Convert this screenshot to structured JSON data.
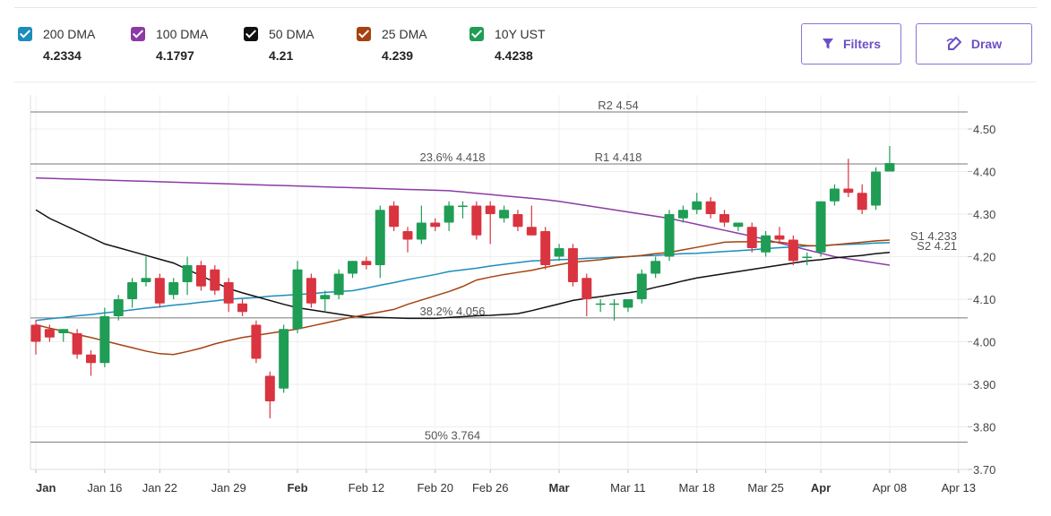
{
  "chart_data": {
    "type": "candlestick",
    "categories": [
      "Jan",
      null,
      null,
      null,
      null,
      "Jan 16",
      null,
      null,
      null,
      "Jan 22",
      null,
      null,
      null,
      null,
      "Jan 29",
      null,
      null,
      null,
      null,
      "Feb",
      null,
      null,
      null,
      null,
      "Feb 12",
      null,
      null,
      null,
      null,
      "Feb 20",
      null,
      null,
      null,
      "Feb 26",
      null,
      null,
      null,
      null,
      "Mar",
      null,
      null,
      null,
      null,
      "Mar 11",
      null,
      null,
      null,
      null,
      "Mar 18",
      null,
      null,
      null,
      null,
      "Mar 25",
      null,
      null,
      null,
      "Apr",
      null,
      null,
      null,
      null,
      "Apr 08",
      null,
      null,
      null,
      null,
      "Apr 13"
    ],
    "series": [
      {
        "name": "200 DMA",
        "color": "#1b8dbd",
        "legend_value": 4.2334,
        "values": [
          4.05,
          4.054,
          4.057,
          4.061,
          4.064,
          4.068,
          4.071,
          4.075,
          4.079,
          4.082,
          4.086,
          4.089,
          4.093,
          4.096,
          4.1,
          4.102,
          4.104,
          4.107,
          4.109,
          4.111,
          4.113,
          4.116,
          4.118,
          4.12,
          4.126,
          4.133,
          4.139,
          4.146,
          4.152,
          4.158,
          4.165,
          4.169,
          4.173,
          4.178,
          4.182,
          4.186,
          4.19,
          4.191,
          4.193,
          4.194,
          4.196,
          4.197,
          4.199,
          4.2,
          4.202,
          4.203,
          4.205,
          4.207,
          4.208,
          4.21,
          4.212,
          4.214,
          4.216,
          4.219,
          4.221,
          4.223,
          4.225,
          4.226,
          4.228,
          4.229,
          4.23,
          4.232,
          4.233,
          null,
          null,
          null,
          null,
          null
        ]
      },
      {
        "name": "100 DMA",
        "color": "#8c3ba5",
        "legend_value": 4.1797,
        "values": [
          4.385,
          4.384,
          4.383,
          4.382,
          4.381,
          4.38,
          4.379,
          4.378,
          4.377,
          4.376,
          4.375,
          4.374,
          4.373,
          4.372,
          4.371,
          4.37,
          4.369,
          4.368,
          4.367,
          4.366,
          4.365,
          4.364,
          4.363,
          4.362,
          4.361,
          4.36,
          4.359,
          4.358,
          4.357,
          4.356,
          4.355,
          4.352,
          4.349,
          4.346,
          4.343,
          4.34,
          4.337,
          4.334,
          4.33,
          4.325,
          4.32,
          4.315,
          4.31,
          4.305,
          4.3,
          4.295,
          4.29,
          4.283,
          4.276,
          4.269,
          4.262,
          4.255,
          4.248,
          4.24,
          4.232,
          4.224,
          4.216,
          4.208,
          4.2,
          4.195,
          4.19,
          4.185,
          4.18,
          null,
          null,
          null,
          null,
          null
        ]
      },
      {
        "name": "50 DMA",
        "color": "#111111",
        "legend_value": 4.21,
        "values": [
          4.31,
          4.29,
          4.275,
          4.26,
          4.245,
          4.23,
          4.221,
          4.212,
          4.203,
          4.194,
          4.185,
          4.17,
          4.155,
          4.14,
          4.125,
          4.115,
          4.106,
          4.097,
          4.088,
          4.08,
          4.075,
          4.07,
          4.065,
          4.06,
          4.058,
          4.057,
          4.056,
          4.055,
          4.055,
          4.055,
          4.057,
          4.059,
          4.061,
          4.062,
          4.064,
          4.066,
          4.073,
          4.081,
          4.089,
          4.097,
          4.102,
          4.106,
          4.111,
          4.115,
          4.12,
          4.128,
          4.135,
          4.143,
          4.15,
          4.155,
          4.16,
          4.165,
          4.17,
          4.175,
          4.18,
          4.185,
          4.19,
          4.193,
          4.197,
          4.2,
          4.203,
          4.207,
          4.21,
          null,
          null,
          null,
          null,
          null
        ]
      },
      {
        "name": "25 DMA",
        "color": "#a6420f",
        "legend_value": 4.239,
        "values": [
          4.04,
          4.032,
          4.025,
          4.017,
          4.01,
          4.002,
          3.994,
          3.986,
          3.978,
          3.972,
          3.97,
          3.977,
          3.985,
          3.995,
          4.003,
          4.01,
          4.015,
          4.02,
          4.025,
          4.03,
          4.037,
          4.044,
          4.051,
          4.058,
          4.064,
          4.07,
          4.076,
          4.088,
          4.098,
          4.108,
          4.118,
          4.13,
          4.145,
          4.152,
          4.158,
          4.163,
          4.168,
          4.175,
          4.181,
          4.187,
          4.19,
          4.193,
          4.197,
          4.2,
          4.203,
          4.207,
          4.21,
          4.216,
          4.222,
          4.228,
          4.234,
          4.235,
          4.235,
          4.235,
          4.234,
          4.23,
          4.226,
          4.225,
          4.228,
          4.231,
          4.234,
          4.237,
          4.239,
          null,
          null,
          null,
          null,
          null
        ]
      },
      {
        "name": "10Y UST",
        "color": "#1f9d55",
        "down_color": "#d9343f",
        "legend_value": 4.4238,
        "open": [
          4.04,
          4.03,
          4.02,
          4.02,
          3.97,
          3.95,
          4.06,
          4.1,
          4.14,
          4.15,
          4.11,
          4.14,
          4.18,
          4.17,
          4.14,
          4.09,
          4.04,
          3.92,
          3.89,
          4.03,
          4.15,
          4.1,
          4.11,
          4.16,
          4.19,
          4.18,
          4.32,
          4.26,
          4.24,
          4.28,
          4.28,
          4.32,
          4.32,
          4.32,
          4.29,
          4.3,
          4.27,
          4.26,
          4.2,
          4.22,
          4.15,
          4.09,
          4.09,
          4.08,
          4.1,
          4.16,
          4.2,
          4.29,
          4.31,
          4.33,
          4.3,
          4.27,
          4.27,
          4.21,
          4.25,
          4.24,
          4.2,
          4.21,
          4.33,
          4.36,
          4.35,
          4.32,
          4.4,
          null,
          null,
          null,
          null,
          null
        ],
        "high": [
          4.05,
          4.04,
          4.03,
          4.03,
          3.98,
          4.08,
          4.11,
          4.15,
          4.2,
          4.16,
          4.15,
          4.2,
          4.19,
          4.18,
          4.15,
          4.1,
          4.05,
          3.93,
          4.04,
          4.19,
          4.16,
          4.12,
          4.17,
          4.19,
          4.2,
          4.32,
          4.33,
          4.27,
          4.32,
          4.29,
          4.33,
          4.33,
          4.33,
          4.33,
          4.32,
          4.31,
          4.32,
          4.27,
          4.23,
          4.23,
          4.16,
          4.1,
          4.1,
          4.1,
          4.17,
          4.2,
          4.31,
          4.32,
          4.35,
          4.34,
          4.31,
          4.28,
          4.28,
          4.26,
          4.27,
          4.25,
          4.21,
          4.33,
          4.37,
          4.43,
          4.37,
          4.41,
          4.46,
          null,
          null,
          null,
          null,
          null
        ],
        "low": [
          3.97,
          4.0,
          4.0,
          3.96,
          3.92,
          3.94,
          4.05,
          4.08,
          4.13,
          4.08,
          4.1,
          4.11,
          4.12,
          4.11,
          4.07,
          4.06,
          3.95,
          3.82,
          3.88,
          4.02,
          4.08,
          4.07,
          4.1,
          4.15,
          4.17,
          4.15,
          4.26,
          4.21,
          4.23,
          4.26,
          4.26,
          4.29,
          4.24,
          4.23,
          4.28,
          4.26,
          4.25,
          4.17,
          4.19,
          4.13,
          4.06,
          4.07,
          4.05,
          4.07,
          4.09,
          4.15,
          4.19,
          4.28,
          4.3,
          4.29,
          4.27,
          4.26,
          4.21,
          4.2,
          4.23,
          4.18,
          4.18,
          4.2,
          4.32,
          4.34,
          4.3,
          4.31,
          4.4,
          null,
          null,
          null,
          null,
          null
        ],
        "close": [
          4.0,
          4.01,
          4.03,
          3.97,
          3.95,
          4.06,
          4.1,
          4.14,
          4.15,
          4.09,
          4.14,
          4.18,
          4.13,
          4.12,
          4.09,
          4.07,
          3.96,
          3.86,
          4.03,
          4.17,
          4.09,
          4.11,
          4.16,
          4.19,
          4.18,
          4.31,
          4.27,
          4.24,
          4.28,
          4.27,
          4.32,
          4.32,
          4.25,
          4.3,
          4.31,
          4.27,
          4.25,
          4.18,
          4.22,
          4.14,
          4.1,
          4.09,
          4.09,
          4.1,
          4.16,
          4.19,
          4.3,
          4.31,
          4.33,
          4.3,
          4.28,
          4.28,
          4.22,
          4.25,
          4.24,
          4.19,
          4.2,
          4.33,
          4.36,
          4.35,
          4.31,
          4.4,
          4.42,
          null,
          null,
          null,
          null,
          null
        ]
      }
    ],
    "ylim": [
      3.7,
      4.58
    ],
    "yticks": [
      {
        "value": 3.7,
        "label": "3.70"
      },
      {
        "value": 3.8,
        "label": "3.80"
      },
      {
        "value": 3.9,
        "label": "3.90"
      },
      {
        "value": 4.0,
        "label": "4.00"
      },
      {
        "value": 4.1,
        "label": "4.10"
      },
      {
        "value": 4.2,
        "label": "4.20"
      },
      {
        "value": 4.3,
        "label": "4.30"
      },
      {
        "value": 4.4,
        "label": "4.40"
      },
      {
        "value": 4.5,
        "label": "4.50"
      }
    ],
    "grid": true,
    "pivot_levels": [
      {
        "label": "R2 4.54",
        "value": 4.54
      },
      {
        "label": "R1 4.418",
        "value": 4.418
      }
    ],
    "fib_levels": [
      {
        "label": "23.6% 4.418",
        "value": 4.418
      },
      {
        "label": "38.2% 4.056",
        "value": 4.056
      },
      {
        "label": "50% 3.764",
        "value": 3.764
      }
    ],
    "support_levels": [
      {
        "label": "S1 4.233",
        "value": 4.233
      },
      {
        "label": "S2 4.21",
        "value": 4.21
      }
    ]
  },
  "buttons": {
    "filters": "Filters",
    "draw": "Draw"
  }
}
